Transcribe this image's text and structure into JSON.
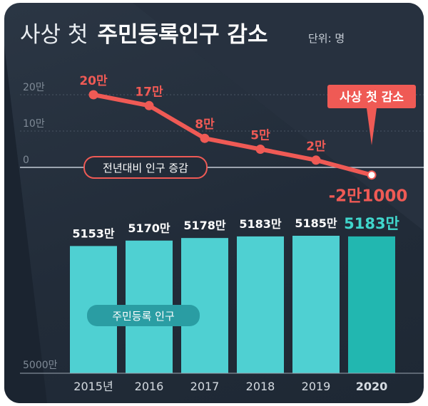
{
  "title": {
    "light": "사상 첫",
    "bold": "주민등록인구 감소"
  },
  "unit": "단위: 명",
  "colors": {
    "line": "#ef5a55",
    "bar": "#4fd0d2",
    "bar_highlight": "#22b7b0",
    "highlight_text": "#40d6cc",
    "background": "#222c39"
  },
  "chart_data": [
    {
      "type": "line",
      "name": "전년대비 인구 증감",
      "x": [
        "2015년",
        "2016",
        "2017",
        "2018",
        "2019",
        "2020"
      ],
      "values": [
        200000,
        170000,
        80000,
        50000,
        20000,
        -21000
      ],
      "data_labels": [
        "20만",
        "17만",
        "8만",
        "5만",
        "2만",
        "-2만1000"
      ],
      "y_ticks": [
        "20만",
        "10만",
        "0"
      ],
      "ylim": [
        -30000,
        250000
      ],
      "annotation": "사상 첫 감소"
    },
    {
      "type": "bar",
      "name": "주민등록 인구",
      "categories": [
        "2015년",
        "2016",
        "2017",
        "2018",
        "2019",
        "2020"
      ],
      "values": [
        51530000,
        51700000,
        51780000,
        51830000,
        51850000,
        51830000
      ],
      "data_labels": [
        "5153만",
        "5170만",
        "5178만",
        "5183만",
        "5185만",
        "5183만"
      ],
      "y_ticks": [
        "5000만"
      ],
      "highlight": "2020"
    }
  ]
}
